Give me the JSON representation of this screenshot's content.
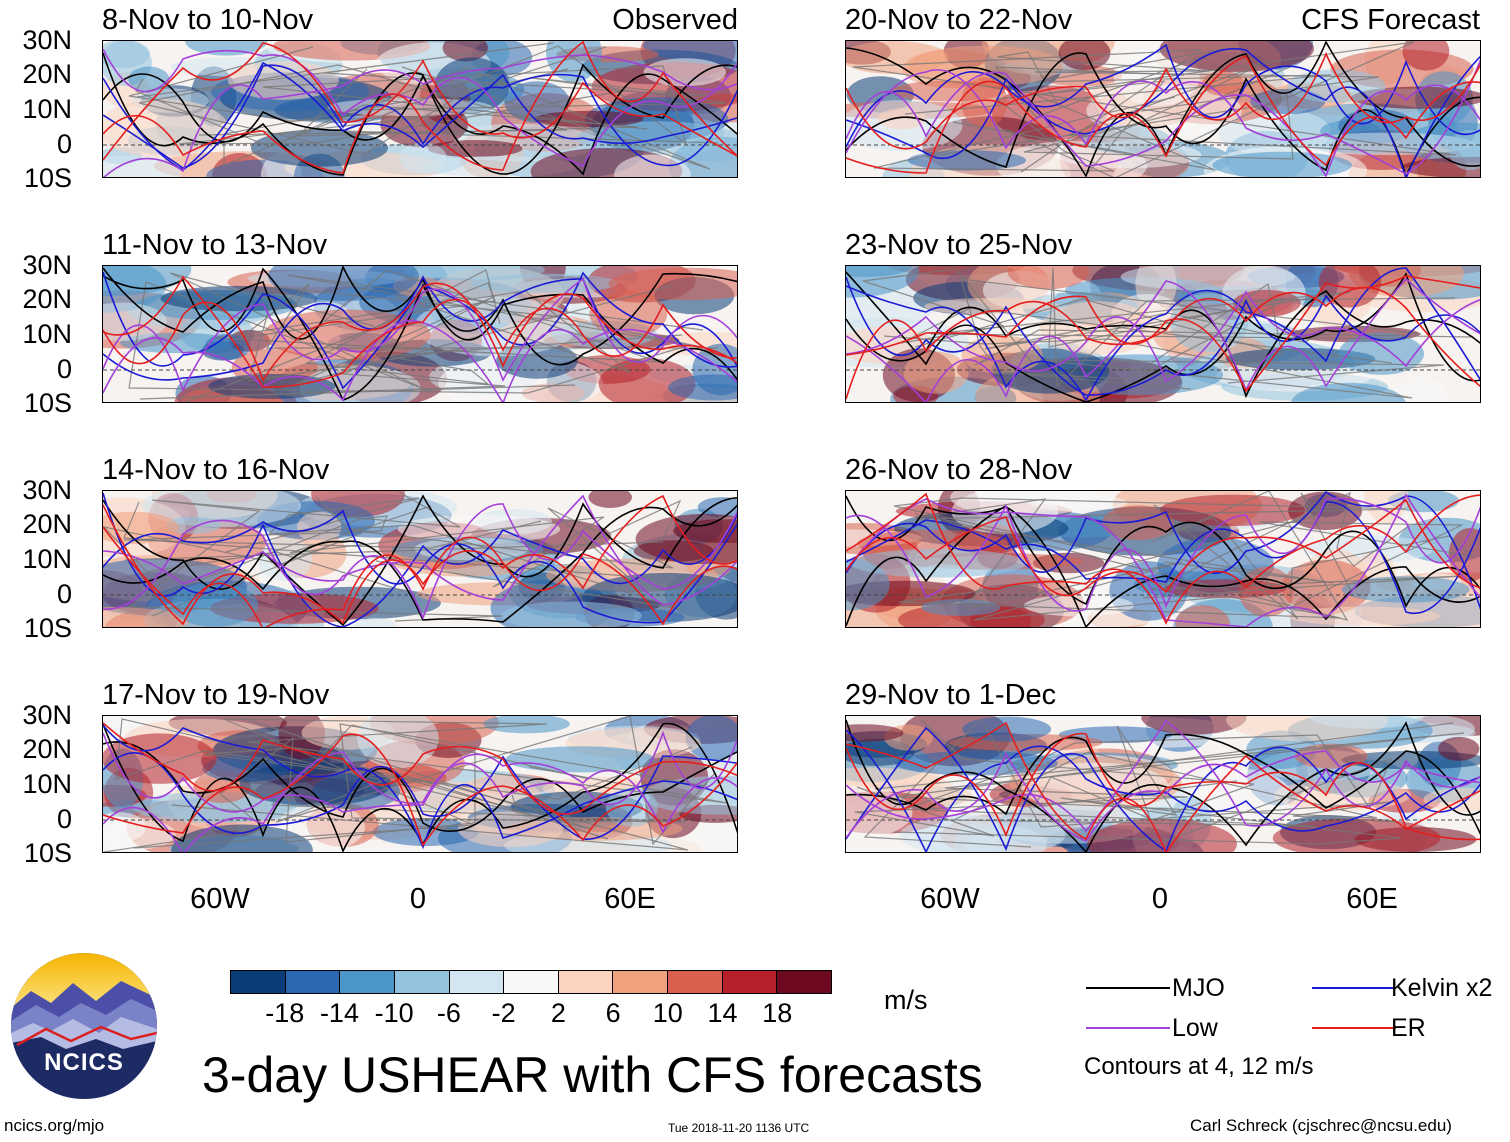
{
  "title": "3-day USHEAR with CFS forecasts",
  "left_column_tag": "Observed",
  "right_column_tag": "CFS Forecast",
  "latitude_labels": [
    "30N",
    "20N",
    "10N",
    "0",
    "10S"
  ],
  "longitude_labels": [
    "60W",
    "0",
    "60E"
  ],
  "panels": [
    {
      "period": "8-Nov to 10-Nov",
      "kind": "observed"
    },
    {
      "period": "11-Nov to 13-Nov",
      "kind": "observed"
    },
    {
      "period": "14-Nov to 16-Nov",
      "kind": "observed"
    },
    {
      "period": "17-Nov to 19-Nov",
      "kind": "observed"
    },
    {
      "period": "20-Nov to 22-Nov",
      "kind": "forecast"
    },
    {
      "period": "23-Nov to 25-Nov",
      "kind": "forecast"
    },
    {
      "period": "26-Nov to 28-Nov",
      "kind": "forecast"
    },
    {
      "period": "29-Nov to 1-Dec",
      "kind": "forecast"
    }
  ],
  "colorbar": {
    "unit": "m/s",
    "labels": [
      "-18",
      "-14",
      "-10",
      "-6",
      "-2",
      "2",
      "6",
      "10",
      "14",
      "18"
    ],
    "colors": [
      "#0b3d78",
      "#2a68b0",
      "#4b96c9",
      "#93c3de",
      "#d2e5f0",
      "#f8f8f8",
      "#fbd3bf",
      "#f0a17e",
      "#d9604f",
      "#b5202a",
      "#6e0a1f"
    ]
  },
  "legend": {
    "items": [
      {
        "label": "MJO",
        "color": "#000000"
      },
      {
        "label": "Kelvin x2",
        "color": "#1b1bd6"
      },
      {
        "label": "Low",
        "color": "#a43fd9"
      },
      {
        "label": "ER",
        "color": "#e51e1e"
      }
    ],
    "note": "Contours at 4, 12 m/s"
  },
  "logo_text": "NCICS",
  "footer": {
    "website": "ncics.org/mjo",
    "timestamp": "Tue 2018-11-20 1136 UTC",
    "author": "Carl Schreck (cjschrec@ncsu.edu)"
  }
}
